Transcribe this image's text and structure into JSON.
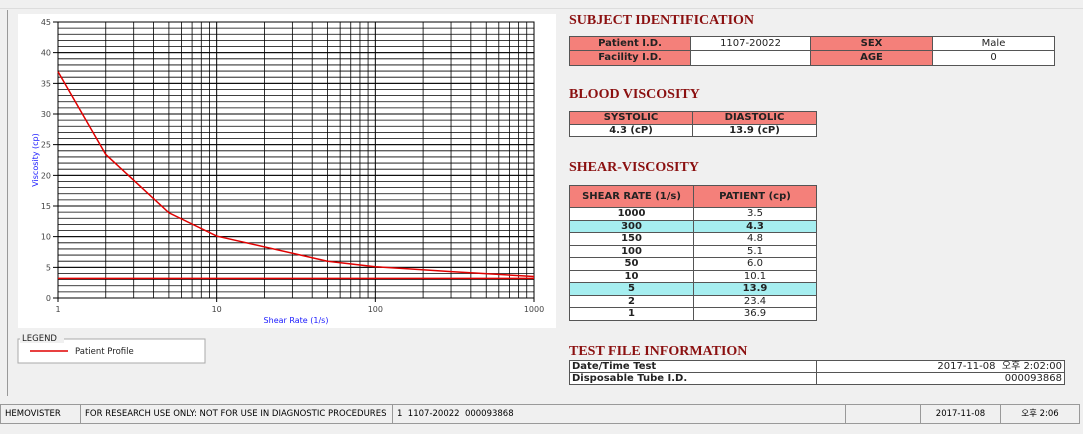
{
  "chart_data": {
    "type": "line",
    "xlabel": "Shear Rate (1/s)",
    "ylabel": "Viscosity (cp)",
    "xscale": "log",
    "xlim": [
      1,
      1000
    ],
    "xticks": [
      1,
      10,
      100,
      1000
    ],
    "ylim": [
      0,
      45
    ],
    "yticks": [
      0,
      5,
      10,
      15,
      20,
      25,
      30,
      35,
      40,
      45
    ],
    "grid": true,
    "legend_title": "LEGEND",
    "series": [
      {
        "name": "Patient Profile",
        "color": "#e00000",
        "x": [
          1,
          2,
          5,
          10,
          50,
          100,
          150,
          300,
          1000
        ],
        "values": [
          36.9,
          23.4,
          13.9,
          10.1,
          6.0,
          5.1,
          4.8,
          4.3,
          3.5
        ]
      }
    ],
    "hlines": [
      3.2
    ]
  },
  "subject": {
    "title": "SUBJECT IDENTIFICATION",
    "rows": [
      [
        "Patient I.D.",
        "1107-20022",
        "SEX",
        "Male"
      ],
      [
        "Facility I.D.",
        null,
        "AGE",
        "0"
      ]
    ]
  },
  "blood": {
    "title": "BLOOD VISCOSITY",
    "headers": [
      "SYSTOLIC",
      "DIASTOLIC"
    ],
    "values": [
      "4.3 (cP)",
      "13.9 (cP)"
    ]
  },
  "shear": {
    "title": "SHEAR-VISCOSITY",
    "headers": [
      "SHEAR RATE (1/s)",
      "PATIENT (cp)"
    ],
    "rows": [
      [
        "1000",
        "3.5"
      ],
      [
        "300",
        "4.3"
      ],
      [
        "150",
        "4.8"
      ],
      [
        "100",
        "5.1"
      ],
      [
        "50",
        "6.0"
      ],
      [
        "10",
        "10.1"
      ],
      [
        "5",
        "13.9"
      ],
      [
        "2",
        "23.4"
      ],
      [
        "1",
        "36.9"
      ]
    ],
    "highlight_rows": [
      1,
      6
    ]
  },
  "test_file": {
    "title": "TEST FILE INFORMATION",
    "rows": [
      [
        "Date/Time Test",
        "2017-11-08  오후 2:02:00"
      ],
      [
        "Disposable Tube I.D.",
        "000093868"
      ]
    ]
  },
  "status_bar": [
    "HEMOVISTER",
    "FOR RESEARCH USE ONLY: NOT FOR USE IN DIAGNOSTIC PROCEDURES",
    "1  1107-20022  000093868",
    "2017-11-08",
    "오후 2:06"
  ]
}
